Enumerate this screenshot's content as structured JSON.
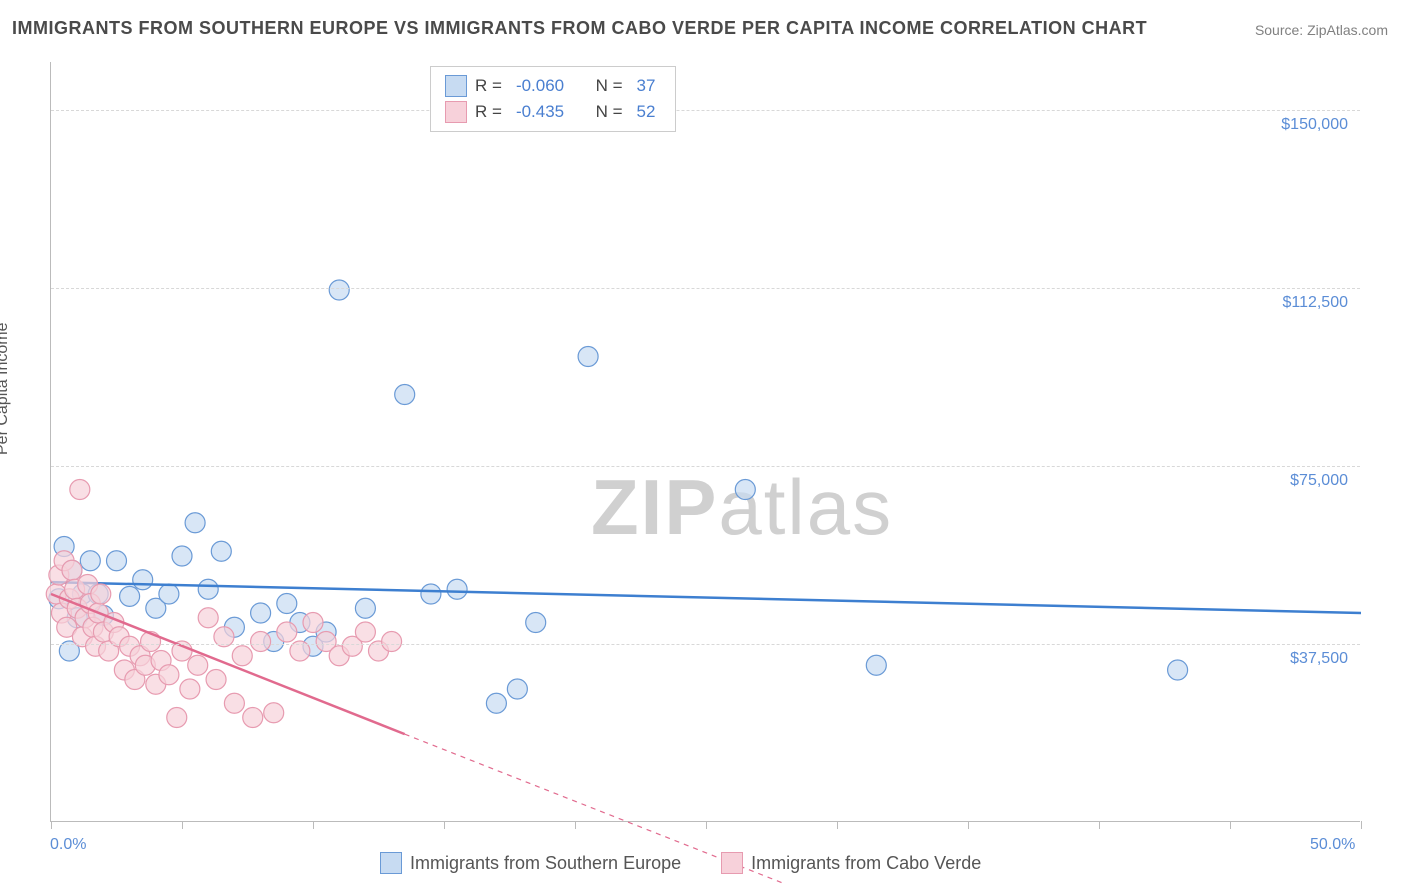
{
  "title": "IMMIGRANTS FROM SOUTHERN EUROPE VS IMMIGRANTS FROM CABO VERDE PER CAPITA INCOME CORRELATION CHART",
  "source": "Source: ZipAtlas.com",
  "ylabel": "Per Capita Income",
  "watermark_a": "ZIP",
  "watermark_b": "atlas",
  "chart": {
    "type": "scatter",
    "xlim": [
      0.0,
      50.0
    ],
    "ylim": [
      0,
      160000
    ],
    "x_unit": "%",
    "background_color": "#ffffff",
    "grid_color": "#d8d8d8",
    "axis_color": "#bbbbbb",
    "tick_label_color": "#5b8dd6",
    "y_ticks": [
      {
        "value": 37500,
        "label": "$37,500"
      },
      {
        "value": 75000,
        "label": "$75,000"
      },
      {
        "value": 112500,
        "label": "$112,500"
      },
      {
        "value": 150000,
        "label": "$150,000"
      }
    ],
    "x_tick_positions": [
      0,
      5,
      10,
      15,
      20,
      25,
      30,
      35,
      40,
      45,
      50
    ],
    "x_end_labels": {
      "min": "0.0%",
      "max": "50.0%"
    },
    "marker_radius": 10,
    "marker_stroke_width": 1.2,
    "line_width": 2.5,
    "series": [
      {
        "name": "Immigrants from Southern Europe",
        "fill": "#c7dbf2",
        "stroke": "#6a9ad6",
        "line_color": "#3d7fd0",
        "R": "-0.060",
        "N": "37",
        "trend": {
          "x1": 0,
          "y1": 50500,
          "x2": 50,
          "y2": 44000,
          "dashed": false
        },
        "points": [
          [
            0.3,
            47000
          ],
          [
            0.5,
            58000
          ],
          [
            0.7,
            36000
          ],
          [
            0.8,
            53000
          ],
          [
            1.0,
            43000
          ],
          [
            1.2,
            48000
          ],
          [
            1.5,
            55000
          ],
          [
            1.8,
            48000
          ],
          [
            2.0,
            43500
          ],
          [
            2.5,
            55000
          ],
          [
            3.0,
            47500
          ],
          [
            3.5,
            51000
          ],
          [
            4.0,
            45000
          ],
          [
            4.5,
            48000
          ],
          [
            5.0,
            56000
          ],
          [
            5.5,
            63000
          ],
          [
            6.0,
            49000
          ],
          [
            6.5,
            57000
          ],
          [
            7.0,
            41000
          ],
          [
            8.0,
            44000
          ],
          [
            8.5,
            38000
          ],
          [
            9.0,
            46000
          ],
          [
            9.5,
            42000
          ],
          [
            10.0,
            37000
          ],
          [
            10.5,
            40000
          ],
          [
            11.0,
            112000
          ],
          [
            12.0,
            45000
          ],
          [
            13.5,
            90000
          ],
          [
            14.5,
            48000
          ],
          [
            15.5,
            49000
          ],
          [
            17.0,
            25000
          ],
          [
            17.8,
            28000
          ],
          [
            18.5,
            42000
          ],
          [
            20.5,
            98000
          ],
          [
            26.5,
            70000
          ],
          [
            31.5,
            33000
          ],
          [
            43.0,
            32000
          ]
        ]
      },
      {
        "name": "Immigrants from Cabo Verde",
        "fill": "#f7d1da",
        "stroke": "#e79bb0",
        "line_color": "#e16a8e",
        "R": "-0.435",
        "N": "52",
        "trend": {
          "x1": 0,
          "y1": 48000,
          "x2": 13.5,
          "y2": 18500,
          "dashed": false
        },
        "trend_dash": {
          "x1": 13.5,
          "y1": 18500,
          "x2": 28,
          "y2": -13000
        },
        "points": [
          [
            0.2,
            48000
          ],
          [
            0.3,
            52000
          ],
          [
            0.4,
            44000
          ],
          [
            0.5,
            55000
          ],
          [
            0.6,
            41000
          ],
          [
            0.7,
            47000
          ],
          [
            0.8,
            53000
          ],
          [
            0.9,
            49000
          ],
          [
            1.0,
            45000
          ],
          [
            1.1,
            70000
          ],
          [
            1.2,
            39000
          ],
          [
            1.3,
            43000
          ],
          [
            1.4,
            50000
          ],
          [
            1.5,
            46000
          ],
          [
            1.6,
            41000
          ],
          [
            1.7,
            37000
          ],
          [
            1.8,
            44000
          ],
          [
            1.9,
            48000
          ],
          [
            2.0,
            40000
          ],
          [
            2.2,
            36000
          ],
          [
            2.4,
            42000
          ],
          [
            2.6,
            39000
          ],
          [
            2.8,
            32000
          ],
          [
            3.0,
            37000
          ],
          [
            3.2,
            30000
          ],
          [
            3.4,
            35000
          ],
          [
            3.6,
            33000
          ],
          [
            3.8,
            38000
          ],
          [
            4.0,
            29000
          ],
          [
            4.2,
            34000
          ],
          [
            4.5,
            31000
          ],
          [
            4.8,
            22000
          ],
          [
            5.0,
            36000
          ],
          [
            5.3,
            28000
          ],
          [
            5.6,
            33000
          ],
          [
            6.0,
            43000
          ],
          [
            6.3,
            30000
          ],
          [
            6.6,
            39000
          ],
          [
            7.0,
            25000
          ],
          [
            7.3,
            35000
          ],
          [
            7.7,
            22000
          ],
          [
            8.0,
            38000
          ],
          [
            8.5,
            23000
          ],
          [
            9.0,
            40000
          ],
          [
            9.5,
            36000
          ],
          [
            10.0,
            42000
          ],
          [
            10.5,
            38000
          ],
          [
            11.0,
            35000
          ],
          [
            11.5,
            37000
          ],
          [
            12.0,
            40000
          ],
          [
            12.5,
            36000
          ],
          [
            13.0,
            38000
          ]
        ]
      }
    ]
  },
  "legend_top_labels": {
    "R": "R =",
    "N": "N ="
  },
  "legend_bottom": [
    "Immigrants from Southern Europe",
    "Immigrants from Cabo Verde"
  ]
}
